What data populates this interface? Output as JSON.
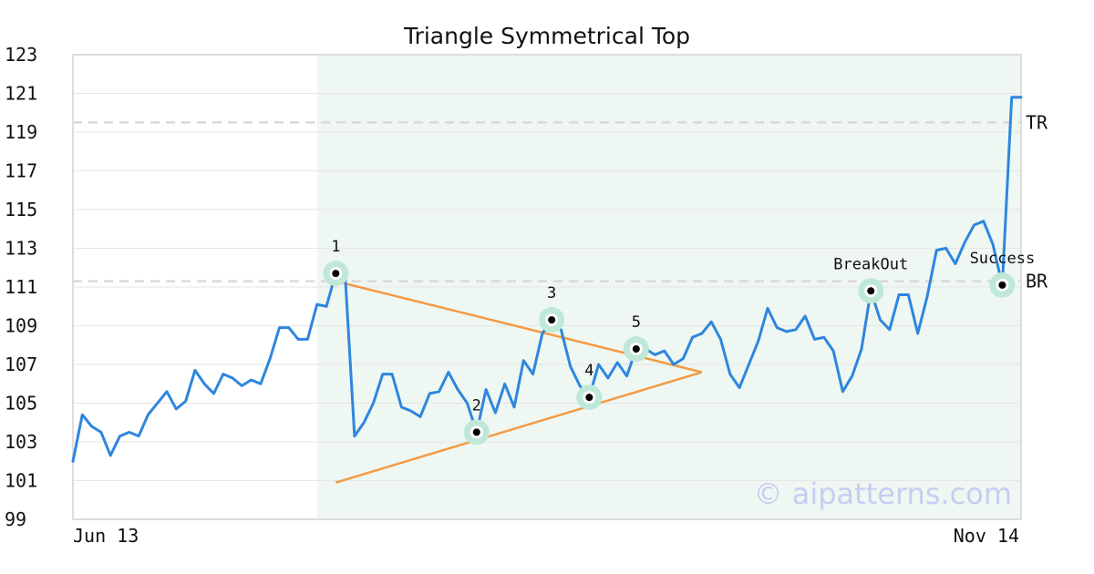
{
  "chart_data": {
    "type": "line",
    "title": "Triangle Symmetrical Top",
    "xlabel": "",
    "ylabel": "",
    "x_tick_labels": [
      "Jun 13",
      "Nov 14"
    ],
    "ylim": [
      99,
      123
    ],
    "y_ticks": [
      99,
      101,
      103,
      105,
      107,
      109,
      111,
      113,
      115,
      117,
      119,
      121,
      123
    ],
    "grid": true,
    "highlight_region": {
      "start_index": 26,
      "end_index": 101
    },
    "series": [
      {
        "values": [
          102.0,
          104.4,
          103.8,
          103.5,
          102.3,
          103.3,
          103.5,
          103.3,
          104.4,
          105.0,
          105.6,
          104.7,
          105.1,
          106.7,
          106.0,
          105.5,
          106.5,
          106.3,
          105.9,
          106.2,
          106.0,
          107.3,
          108.9,
          108.9,
          108.3,
          108.3,
          110.1,
          110.0,
          111.7,
          111.6,
          103.3,
          104.0,
          105.0,
          106.5,
          106.5,
          104.8,
          104.6,
          104.3,
          105.5,
          105.6,
          106.6,
          105.7,
          105.0,
          103.5,
          105.7,
          104.5,
          106.0,
          104.8,
          107.2,
          106.5,
          108.6,
          109.3,
          108.8,
          106.9,
          105.9,
          105.3,
          107.0,
          106.3,
          107.1,
          106.4,
          107.8,
          107.8,
          107.5,
          107.7,
          107.0,
          107.3,
          108.4,
          108.6,
          109.2,
          108.3,
          106.5,
          105.8,
          107.0,
          108.2,
          109.9,
          108.9,
          108.7,
          108.8,
          109.5,
          108.3,
          108.4,
          107.7,
          105.6,
          106.4,
          107.8,
          110.8,
          109.3,
          108.8,
          110.6,
          110.6,
          108.6,
          110.5,
          112.9,
          113.0,
          112.2,
          113.3,
          114.2,
          114.4,
          113.2,
          111.1,
          120.8,
          120.8
        ]
      }
    ],
    "levels": [
      {
        "label": "TR",
        "value": 119.5
      },
      {
        "label": "BR",
        "value": 111.3
      }
    ],
    "trendlines": [
      {
        "from": {
          "index": 28,
          "value": 111.3
        },
        "to": {
          "index": 67,
          "value": 106.6
        }
      },
      {
        "from": {
          "index": 28,
          "value": 100.9
        },
        "to": {
          "index": 67,
          "value": 106.6
        }
      }
    ],
    "markers": [
      {
        "label": "1",
        "index": 28,
        "value": 111.7
      },
      {
        "label": "2",
        "index": 43,
        "value": 103.5
      },
      {
        "label": "3",
        "index": 51,
        "value": 109.3
      },
      {
        "label": "4",
        "index": 55,
        "value": 105.3
      },
      {
        "label": "5",
        "index": 60,
        "value": 107.8
      },
      {
        "label": "BreakOut",
        "index": 85,
        "value": 110.8
      },
      {
        "label": "Success",
        "index": 99,
        "value": 111.1
      }
    ],
    "colors": {
      "line": "#2e86de",
      "trendline": "#f39a45",
      "highlight": "#eef7f2",
      "marker_halo": "#bfe8d8",
      "level": "#d9d9d9",
      "grid": "#e6e6e6",
      "frame": "#dddddd"
    }
  },
  "watermark": "© aipatterns.com"
}
